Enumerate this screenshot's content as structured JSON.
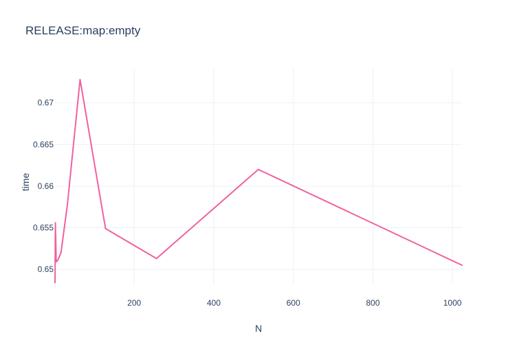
{
  "chart_data": {
    "type": "line",
    "title": "RELEASE:map:empty",
    "xlabel": "N",
    "ylabel": "time",
    "xlim": [
      1,
      1024
    ],
    "ylim": [
      0.6482,
      0.6741
    ],
    "xticks": [
      200,
      400,
      600,
      800,
      1000
    ],
    "xtick_labels": [
      "200",
      "400",
      "600",
      "800",
      "1000"
    ],
    "yticks": [
      0.65,
      0.655,
      0.66,
      0.665,
      0.67
    ],
    "ytick_labels": [
      "0.65",
      "0.655",
      "0.66",
      "0.665",
      "0.67"
    ],
    "grid": true,
    "series": [
      {
        "color": "#f0609e",
        "x": [
          1,
          2,
          4,
          8,
          16,
          32,
          64,
          128,
          256,
          512,
          1024
        ],
        "y": [
          0.6484,
          0.6556,
          0.6509,
          0.6511,
          0.652,
          0.6577,
          0.6728,
          0.6549,
          0.6513,
          0.662,
          0.6505
        ]
      }
    ]
  }
}
